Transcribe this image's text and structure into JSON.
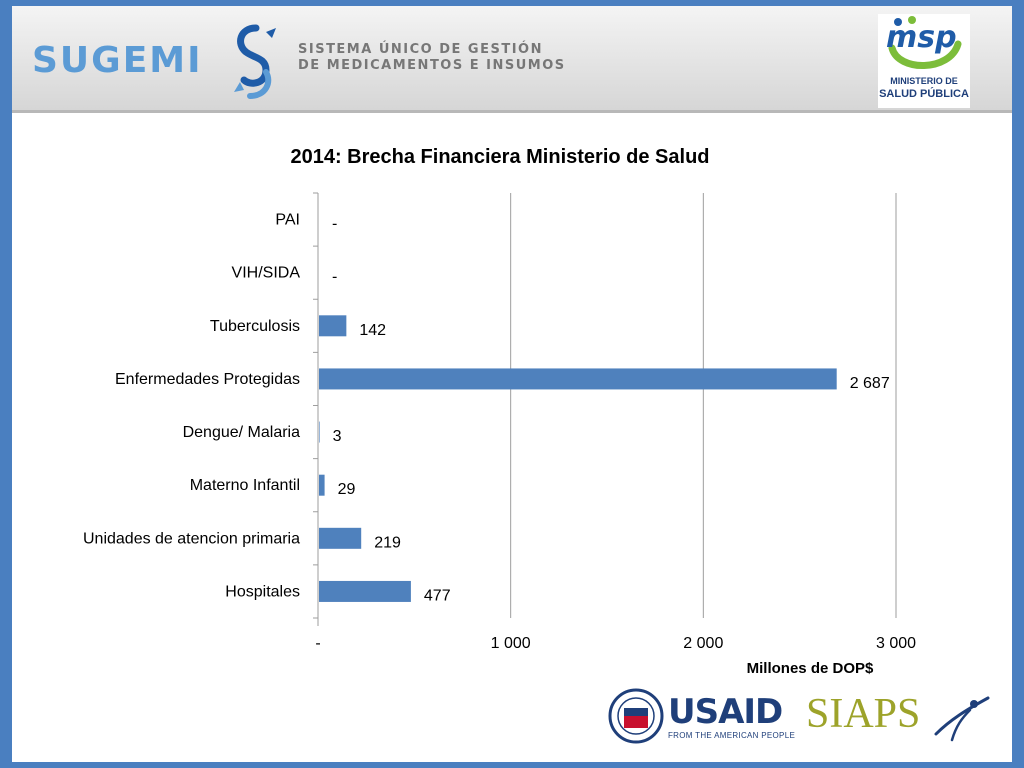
{
  "header": {
    "brand": "SUGEMI",
    "subtitle_line1": "SISTEMA ÚNICO DE GESTIÓN",
    "subtitle_line2": "DE MEDICAMENTOS E INSUMOS",
    "msp_logo_letters": "msp",
    "msp_line1": "MINISTERIO DE",
    "msp_line2": "SALUD PÚBLICA"
  },
  "footer": {
    "usaid": "USAID",
    "usaid_tagline": "FROM THE AMERICAN PEOPLE",
    "siaps": "SIAPS"
  },
  "colors": {
    "bar": "#4f81bd",
    "slide_border": "#4a7fc0",
    "brand_blue": "#5b9bd5",
    "siaps_green": "#9da32a"
  },
  "chart_data": {
    "type": "bar",
    "orientation": "horizontal",
    "title": "2014: Brecha Financiera Ministerio de Salud",
    "xlabel": "Millones de DOP$",
    "ylabel": "",
    "xlim": [
      0,
      3000
    ],
    "xticks": [
      0,
      1000,
      2000,
      3000
    ],
    "xtick_labels": [
      "-",
      "1 000",
      "2 000",
      "3 000"
    ],
    "grid": true,
    "categories": [
      "PAI",
      "VIH/SIDA",
      "Tuberculosis",
      "Enfermedades Protegidas",
      "Dengue/ Malaria",
      "Materno Infantil",
      "Unidades de atencion primaria",
      "Hospitales"
    ],
    "values": [
      0,
      0,
      142,
      2687,
      3,
      29,
      219,
      477
    ],
    "value_labels": [
      "-",
      "-",
      "142",
      "2 687",
      "3",
      "29",
      "219",
      "477"
    ]
  }
}
